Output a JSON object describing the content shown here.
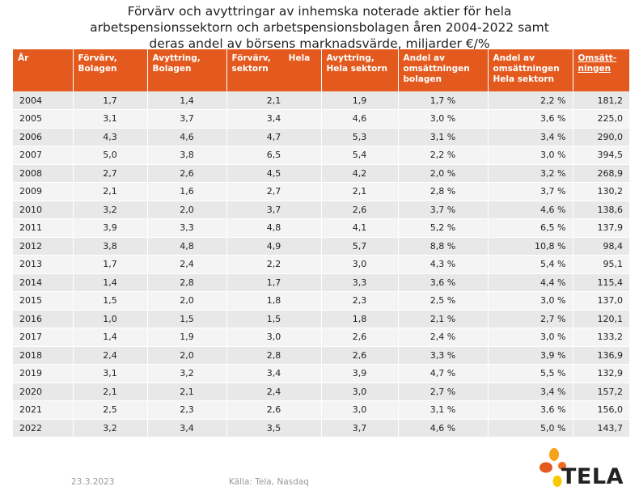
{
  "title": {
    "line1": "Förvärv och avyttringar av inhemska noterade aktier för hela",
    "line2": "arbetspensionssektorn och arbetspensionsbolagen åren 2004-2022 samt",
    "line3": "deras andel av börsens marknadsvärde, miljarder €/%"
  },
  "table": {
    "headers": [
      {
        "l1": "År",
        "l2": ""
      },
      {
        "l1": "Förvärv,",
        "l2": "Bolagen"
      },
      {
        "l1": "Avyttring,",
        "l2": "Bolagen"
      },
      {
        "l1": "Förvärv,      Hela",
        "l2": "sektorn"
      },
      {
        "l1": "Avyttring,",
        "l2": "Hela sektorn"
      },
      {
        "l1": "Andel av",
        "l2": "omsättningen",
        "l3": "bolagen"
      },
      {
        "l1": "Andel av",
        "l2": "omsättningen",
        "l3": "Hela sektorn"
      },
      {
        "l1": "Omsätt-",
        "l2": "ningen"
      }
    ],
    "rows": [
      [
        "2004",
        "1,7",
        "1,4",
        "2,1",
        "1,9",
        "1,7 %",
        "2,2 %",
        "181,2"
      ],
      [
        "2005",
        "3,1",
        "3,7",
        "3,4",
        "4,6",
        "3,0 %",
        "3,6 %",
        "225,0"
      ],
      [
        "2006",
        "4,3",
        "4,6",
        "4,7",
        "5,3",
        "3,1 %",
        "3,4 %",
        "290,0"
      ],
      [
        "2007",
        "5,0",
        "3,8",
        "6,5",
        "5,4",
        "2,2 %",
        "3,0 %",
        "394,5"
      ],
      [
        "2008",
        "2,7",
        "2,6",
        "4,5",
        "4,2",
        "2,0 %",
        "3,2 %",
        "268,9"
      ],
      [
        "2009",
        "2,1",
        "1,6",
        "2,7",
        "2,1",
        "2,8 %",
        "3,7 %",
        "130,2"
      ],
      [
        "2010",
        "3,2",
        "2,0",
        "3,7",
        "2,6",
        "3,7 %",
        "4,6 %",
        "138,6"
      ],
      [
        "2011",
        "3,9",
        "3,3",
        "4,8",
        "4,1",
        "5,2 %",
        "6,5 %",
        "137,9"
      ],
      [
        "2012",
        "3,8",
        "4,8",
        "4,9",
        "5,7",
        "8,8 %",
        "10,8 %",
        "98,4"
      ],
      [
        "2013",
        "1,7",
        "2,4",
        "2,2",
        "3,0",
        "4,3 %",
        "5,4 %",
        "95,1"
      ],
      [
        "2014",
        "1,4",
        "2,8",
        "1,7",
        "3,3",
        "3,6 %",
        "4,4 %",
        "115,4"
      ],
      [
        "2015",
        "1,5",
        "2,0",
        "1,8",
        "2,3",
        "2,5 %",
        "3,0 %",
        "137,0"
      ],
      [
        "2016",
        "1,0",
        "1,5",
        "1,5",
        "1,8",
        "2,1 %",
        "2,7 %",
        "120,1"
      ],
      [
        "2017",
        "1,4",
        "1,9",
        "3,0",
        "2,6",
        "2,4 %",
        "3,0 %",
        "133,2"
      ],
      [
        "2018",
        "2,4",
        "2,0",
        "2,8",
        "2,6",
        "3,3 %",
        "3,9 %",
        "136,9"
      ],
      [
        "2019",
        "3,1",
        "3,2",
        "3,4",
        "3,9",
        "4,7 %",
        "5,5 %",
        "132,9"
      ],
      [
        "2020",
        "2,1",
        "2,1",
        "2,4",
        "3,0",
        "2,7 %",
        "3,4 %",
        "157,2"
      ],
      [
        "2021",
        "2,5",
        "2,3",
        "2,6",
        "3,0",
        "3,1 %",
        "3,6 %",
        "156,0"
      ],
      [
        "2022",
        "3,2",
        "3,4",
        "3,5",
        "3,7",
        "4,6 %",
        "5,0 %",
        "143,7"
      ]
    ]
  },
  "footer": {
    "date": "23.3.2023",
    "source": "Källa: Tela, Nasdaq"
  },
  "logo": {
    "text": "TELA",
    "icon": "tela-petals-icon",
    "colors": [
      "#f7a21b",
      "#e45a1e",
      "#f9c800",
      "#f06d1e"
    ]
  },
  "colors": {
    "header_bg": "#e45a1e",
    "row_odd": "#e8e8e8",
    "row_even": "#f4f4f4"
  }
}
